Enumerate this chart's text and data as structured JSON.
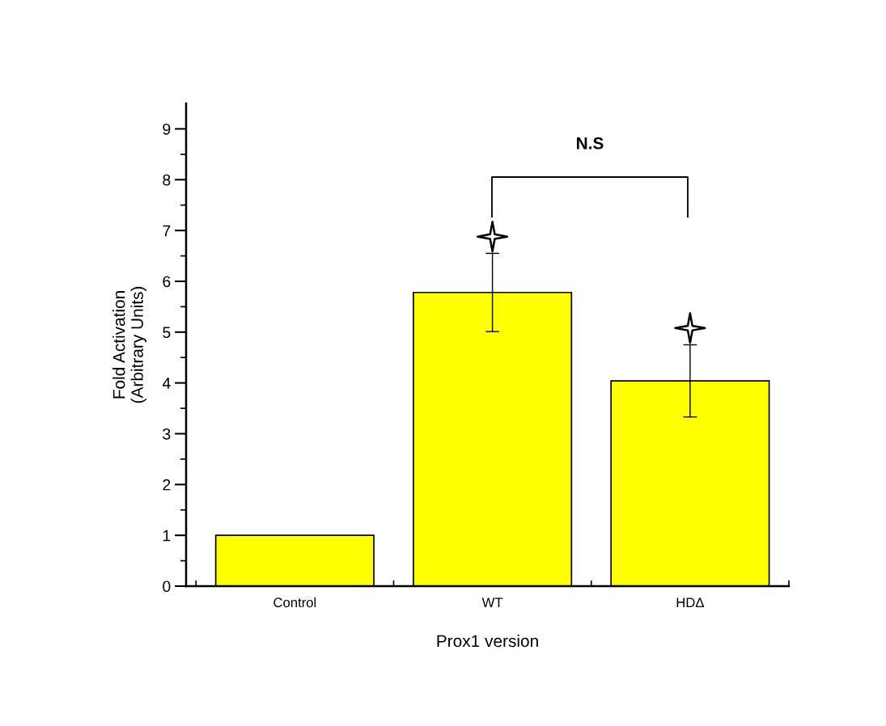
{
  "chart_data": {
    "type": "bar",
    "xlabel": "Prox1 version",
    "ylabel": "Fold Activation\n(Arbitrary Units)",
    "categories": [
      "Control",
      "WT",
      "HDΔ"
    ],
    "series": [
      {
        "color": "#ffff00",
        "values": [
          1.0,
          5.78,
          4.04
        ],
        "errors": [
          null,
          0.77,
          0.71
        ]
      },
      {
        "type": "scatter",
        "x": [
          "WT",
          "HDΔ"
        ],
        "values": [
          6.88,
          5.08
        ],
        "color": "#ffffff",
        "marker": "star"
      }
    ],
    "ylim": [
      0,
      9.5
    ],
    "yticks": [
      0,
      1,
      2,
      3,
      4,
      5,
      6,
      7,
      8,
      9
    ],
    "annotations": [
      "N.S"
    ],
    "grid": false,
    "legend": false
  }
}
